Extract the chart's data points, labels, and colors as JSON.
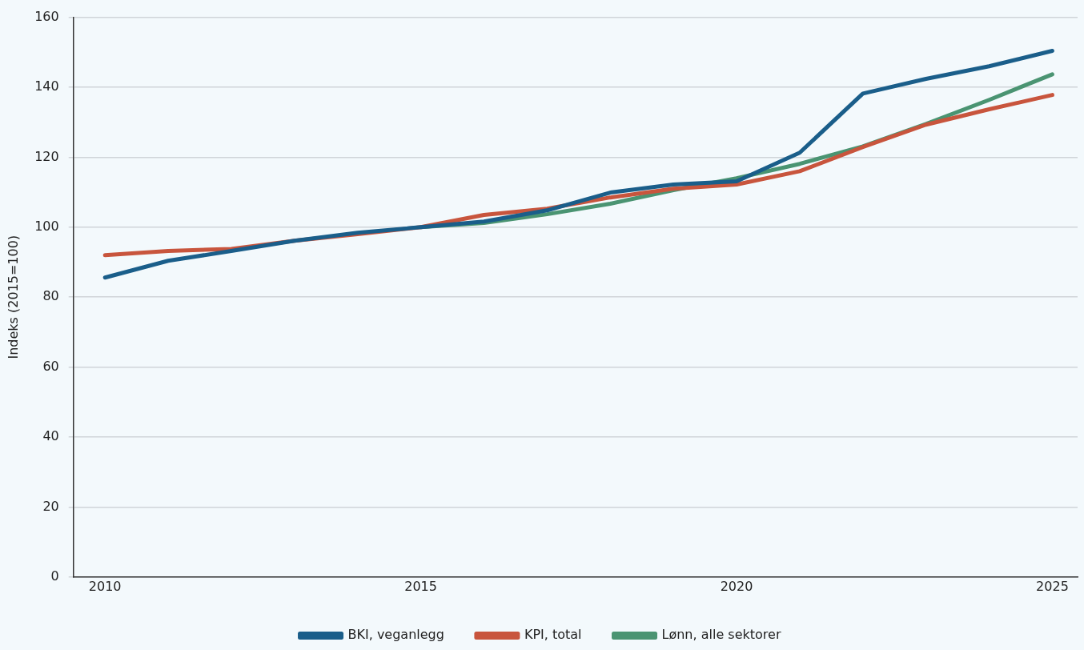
{
  "chart_data": {
    "type": "line",
    "ylabel": "Indeks (2015=100)",
    "x": [
      2010,
      2011,
      2012,
      2013,
      2014,
      2015,
      2016,
      2017,
      2018,
      2019,
      2020,
      2021,
      2022,
      2023,
      2024,
      2025
    ],
    "series": [
      {
        "name": "BKI, veganlegg",
        "color": "#1a5e8a",
        "values": [
          85.6,
          90.4,
          93.2,
          96.1,
          98.4,
          100,
          101.6,
          104.8,
          109.9,
          112.2,
          113.1,
          121.3,
          138.2,
          142.4,
          146.0,
          150.4
        ]
      },
      {
        "name": "KPI, total",
        "color": "#c8553d",
        "values": [
          92.0,
          93.2,
          93.8,
          96.1,
          98.0,
          100,
          103.5,
          105.3,
          108.5,
          111.0,
          112.2,
          116.0,
          122.9,
          129.3,
          133.7,
          137.8
        ]
      },
      {
        "name": "Lønn, alle sektorer",
        "color": "#4a9472",
        "values": [
          null,
          null,
          null,
          null,
          null,
          100,
          101.2,
          103.7,
          106.7,
          110.6,
          114.0,
          118.1,
          123.1,
          129.5,
          136.4,
          143.7
        ]
      }
    ],
    "xlim": [
      2009.5,
      2025.4
    ],
    "xticks": [
      2010,
      2015,
      2020,
      2025
    ],
    "ylim": [
      0,
      160
    ],
    "yticks": [
      0,
      20,
      40,
      60,
      80,
      100,
      120,
      140,
      160
    ],
    "grid": "y",
    "legend": "bottom",
    "marker": "none",
    "line_style": "solid"
  }
}
